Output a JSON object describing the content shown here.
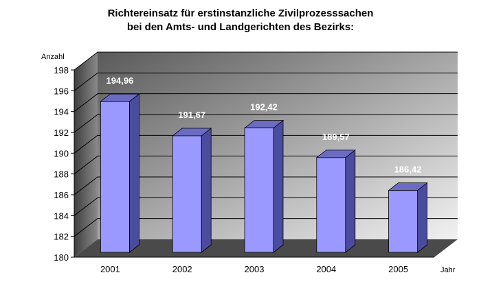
{
  "chart_data": {
    "type": "bar",
    "title_line1": "Richtereinsatz für erstinstanzliche Zivilprozesssachen",
    "title_line2": "bei den Amts- und Landgerichten des Bezirks:",
    "ylabel": "Anzahl",
    "xlabel": "Jahr",
    "categories": [
      "2001",
      "2002",
      "2003",
      "2004",
      "2005"
    ],
    "values": [
      194.96,
      191.67,
      192.42,
      189.57,
      186.42
    ],
    "value_labels": [
      "194,96",
      "191,67",
      "192,42",
      "189,57",
      "186,42"
    ],
    "ylim": [
      180,
      198
    ],
    "yticks": [
      180,
      182,
      184,
      186,
      188,
      190,
      192,
      194,
      196,
      198
    ],
    "grid": true,
    "legend": "none",
    "bar_color": "#9999ff",
    "bar_side_color": "#4c4c9e",
    "bar_top_color": "#6b6bc2",
    "background_gradient": [
      "#5a5a5a",
      "#f2f2f2"
    ]
  }
}
